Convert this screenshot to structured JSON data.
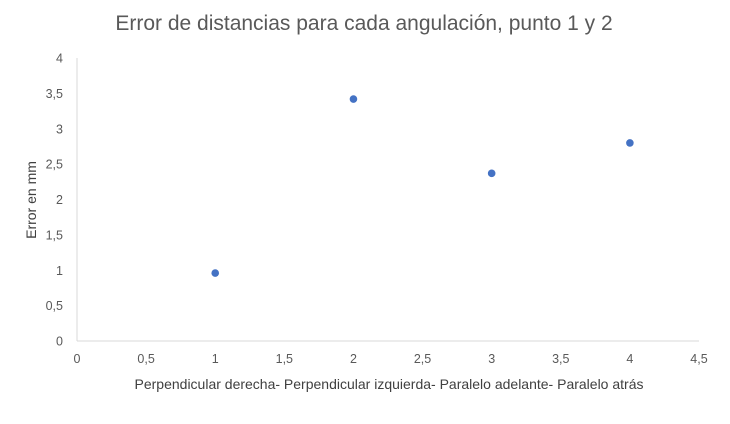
{
  "chart_data": {
    "type": "scatter",
    "title": "Error de distancias para cada angulación, punto 1 y 2",
    "xlabel": "Perpendicular derecha- Perpendicular izquierda- Paralelo adelante- Paralelo atrás",
    "ylabel": "Error en mm",
    "xlim": [
      0,
      4.5
    ],
    "ylim": [
      0,
      4
    ],
    "x_ticks": [
      "0",
      "0,5",
      "1",
      "1,5",
      "2",
      "2,5",
      "3",
      "3,5",
      "4",
      "4,5"
    ],
    "y_ticks": [
      "0",
      "0,5",
      "1",
      "1,5",
      "2",
      "2,5",
      "3",
      "3,5",
      "4"
    ],
    "grid": false,
    "legend": "none",
    "marker_color": "#4472c4",
    "series": [
      {
        "values": [
          {
            "x": 1,
            "y": 0.96
          },
          {
            "x": 2,
            "y": 3.42
          },
          {
            "x": 3,
            "y": 2.37
          },
          {
            "x": 4,
            "y": 2.8
          }
        ]
      }
    ]
  }
}
